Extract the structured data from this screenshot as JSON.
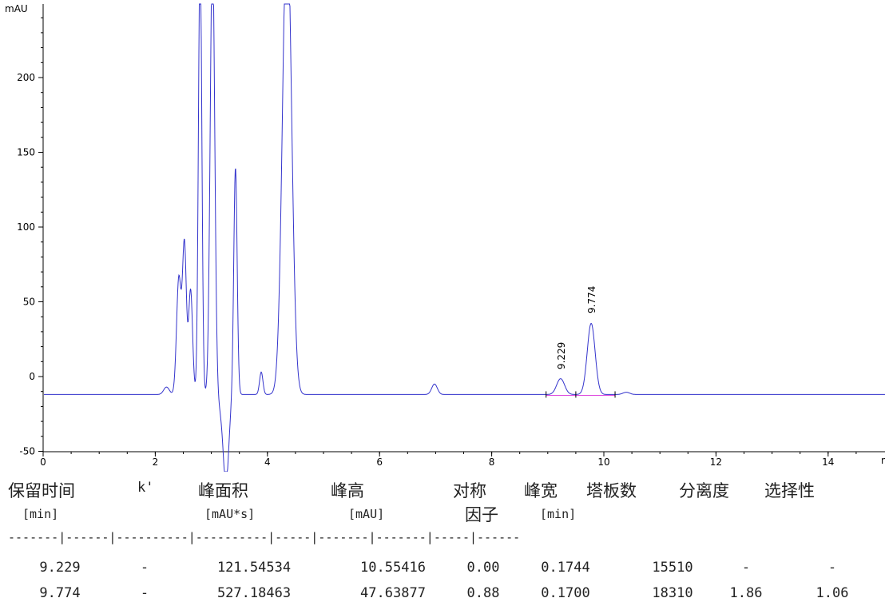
{
  "chart_data": {
    "type": "line",
    "ylabel": "mAU",
    "xlabel": "min",
    "xlim": [
      0,
      15
    ],
    "ylim": [
      -50,
      250
    ],
    "x_ticks": [
      "0",
      "2",
      "4",
      "6",
      "8",
      "10",
      "12",
      "14"
    ],
    "y_ticks": [
      "-50",
      "0",
      "50",
      "100",
      "150",
      "200"
    ],
    "grid": false,
    "line_color": "#3333cc",
    "baseline_color": "#dd44dd",
    "baseline_y": -12,
    "peaks": [
      {
        "t": 2.2,
        "h": 5,
        "w": 0.05
      },
      {
        "t": 2.42,
        "h": 78,
        "w": 0.04
      },
      {
        "t": 2.52,
        "h": 100,
        "w": 0.035
      },
      {
        "t": 2.63,
        "h": 70,
        "w": 0.035
      },
      {
        "t": 2.8,
        "h": 300,
        "w": 0.03
      },
      {
        "t": 3.02,
        "h": 300,
        "w": 0.04
      },
      {
        "t": 3.26,
        "h": -60,
        "w": 0.05
      },
      {
        "t": 3.43,
        "h": 152,
        "w": 0.03
      },
      {
        "t": 3.89,
        "h": 15,
        "w": 0.03
      },
      {
        "t": 4.35,
        "h": 320,
        "w": 0.08
      },
      {
        "t": 6.98,
        "h": 7,
        "w": 0.05
      },
      {
        "t": 9.229,
        "h": 10.6,
        "w": 0.07
      },
      {
        "t": 9.774,
        "h": 47.6,
        "w": 0.07
      },
      {
        "t": 10.4,
        "h": 1.5,
        "w": 0.06
      }
    ],
    "labeled_peaks": [
      {
        "label": "9.229",
        "t": 9.229,
        "y": 0.5
      },
      {
        "label": "9.774",
        "t": 9.774,
        "y": 38
      }
    ],
    "integration_ticks": [
      8.97,
      9.5,
      10.2
    ]
  },
  "table": {
    "headers": [
      "保留时间",
      "k'",
      "峰面积",
      "峰高",
      "对称",
      "峰宽",
      "塔板数",
      "分离度",
      "选择性"
    ],
    "headers_line2": {
      "symmetry": "因子"
    },
    "units": {
      "rt": "[min]",
      "area": "[mAU*s]",
      "height": "[mAU]",
      "width": "[min]"
    },
    "separator": "-------|------|----------|----------|-----|-------|-------|-----|------",
    "rows": [
      [
        "9.229",
        "-",
        "121.54534",
        "10.55416",
        "0.00",
        "0.1744",
        "15510",
        "-",
        "-"
      ],
      [
        "9.774",
        "-",
        "527.18463",
        "47.63877",
        "0.88",
        "0.1700",
        "18310",
        "1.86",
        "1.06"
      ]
    ]
  }
}
